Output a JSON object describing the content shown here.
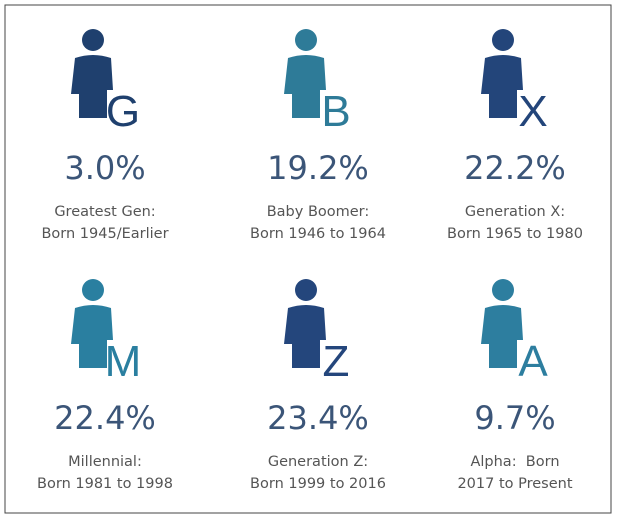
{
  "generations": [
    {
      "letter": "G",
      "color": "#1f406e",
      "percent": "3.0%",
      "lines": [
        "Greatest Gen:",
        "Born 1945/Earlier"
      ]
    },
    {
      "letter": "B",
      "color": "#2e7b98",
      "percent": "19.2%",
      "lines": [
        "Baby Boomer:",
        "Born 1946 to 1964"
      ]
    },
    {
      "letter": "X",
      "color": "#23457a",
      "percent": "22.2%",
      "lines": [
        "Generation X:",
        "Born 1965 to 1980"
      ]
    },
    {
      "letter": "M",
      "color": "#2a7fa0",
      "percent": "22.4%",
      "lines": [
        "Millennial:",
        "Born 1981 to 1998"
      ]
    },
    {
      "letter": "Z",
      "color": "#24467c",
      "percent": "23.4%",
      "lines": [
        "Generation Z:",
        "Born 1999 to 2016"
      ]
    },
    {
      "letter": "A",
      "color": "#2d7e9f",
      "percent": "9.7%",
      "lines": [
        "Alpha:  Born",
        "2017 to Present"
      ]
    }
  ]
}
